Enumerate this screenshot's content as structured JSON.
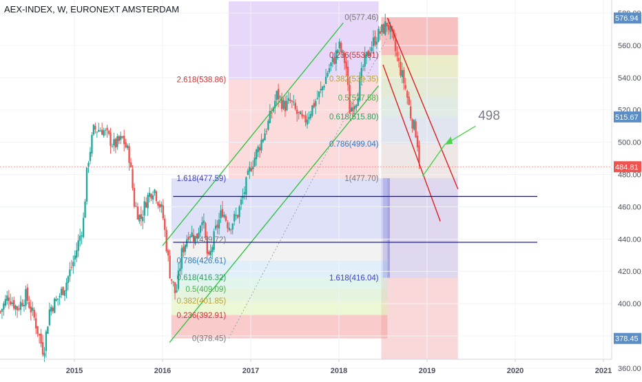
{
  "chart_data": {
    "type": "candlestick",
    "title": "AEX-INDEX, W, EURONEXT AMSTERDAM",
    "x_ticks": [
      "2015",
      "2016",
      "2017",
      "2018",
      "2019",
      "2020",
      "2021"
    ],
    "y_ticks": [
      "360.00",
      "380.00",
      "400.00",
      "420.00",
      "440.00",
      "460.00",
      "480.00",
      "500.00",
      "520.00",
      "540.00",
      "560.00",
      "580.00"
    ],
    "ylim": [
      352,
      583
    ],
    "xlim": [
      2014.16,
      2021.02
    ],
    "price_badges": [
      {
        "label": "576.94",
        "value": 576.94,
        "color": "#5b8ec4"
      },
      {
        "label": "515.67",
        "value": 515.67,
        "color": "#5b8ec4"
      },
      {
        "label": "484.81",
        "value": 484.81,
        "color": "#ef5350"
      },
      {
        "label": "378.45",
        "value": 378.45,
        "color": "#5b8ec4"
      }
    ],
    "candle_points": [
      [
        2014.16,
        395
      ],
      [
        2014.25,
        405
      ],
      [
        2014.35,
        397
      ],
      [
        2014.45,
        405
      ],
      [
        2014.55,
        390
      ],
      [
        2014.65,
        370
      ],
      [
        2014.72,
        397
      ],
      [
        2014.8,
        402
      ],
      [
        2014.9,
        412
      ],
      [
        2015.0,
        428
      ],
      [
        2015.1,
        450
      ],
      [
        2015.15,
        487
      ],
      [
        2015.22,
        508
      ],
      [
        2015.32,
        508
      ],
      [
        2015.45,
        498
      ],
      [
        2015.55,
        502
      ],
      [
        2015.62,
        492
      ],
      [
        2015.68,
        462
      ],
      [
        2015.75,
        452
      ],
      [
        2015.82,
        465
      ],
      [
        2015.9,
        472
      ],
      [
        2016.0,
        456
      ],
      [
        2016.08,
        420
      ],
      [
        2016.15,
        405
      ],
      [
        2016.22,
        432
      ],
      [
        2016.3,
        445
      ],
      [
        2016.38,
        440
      ],
      [
        2016.45,
        455
      ],
      [
        2016.52,
        425
      ],
      [
        2016.6,
        445
      ],
      [
        2016.68,
        458
      ],
      [
        2016.75,
        448
      ],
      [
        2016.85,
        455
      ],
      [
        2016.92,
        468
      ],
      [
        2017.0,
        485
      ],
      [
        2017.1,
        498
      ],
      [
        2017.2,
        512
      ],
      [
        2017.3,
        530
      ],
      [
        2017.38,
        522
      ],
      [
        2017.45,
        525
      ],
      [
        2017.52,
        518
      ],
      [
        2017.6,
        512
      ],
      [
        2017.7,
        522
      ],
      [
        2017.8,
        532
      ],
      [
        2017.88,
        545
      ],
      [
        2017.95,
        552
      ],
      [
        2018.0,
        560
      ],
      [
        2018.08,
        548
      ],
      [
        2018.12,
        520
      ],
      [
        2018.2,
        527
      ],
      [
        2018.28,
        548
      ],
      [
        2018.35,
        558
      ],
      [
        2018.42,
        565
      ],
      [
        2018.5,
        570
      ],
      [
        2018.55,
        574
      ],
      [
        2018.6,
        565
      ],
      [
        2018.68,
        548
      ],
      [
        2018.75,
        535
      ],
      [
        2018.82,
        515
      ],
      [
        2018.88,
        505
      ],
      [
        2018.92,
        485
      ]
    ],
    "fib_upper": {
      "anchor_low": "0(378.45)",
      "anchor_high": "0(577.46)",
      "levels": [
        {
          "label": "0.236(553.91)",
          "value": 553.91,
          "color": "#cc3333"
        },
        {
          "label": "0.382(539.35)",
          "value": 539.35,
          "color": "#b7a22f"
        },
        {
          "label": "0.5(527.58)",
          "value": 527.58,
          "color": "#4caf50"
        },
        {
          "label": "0.618(515.80)",
          "value": 515.8,
          "color": "#2e9c60"
        },
        {
          "label": "0.786(499.04)",
          "value": 499.04,
          "color": "#2b78c4"
        },
        {
          "label": "1(477.70)",
          "value": 477.7,
          "color": "#777777"
        },
        {
          "label": "1.618(416.04)",
          "value": 416.04,
          "color": "#3b3bc4"
        }
      ]
    },
    "fib_lower": {
      "levels": [
        {
          "label": "2.618(538.86)",
          "value": 538.86,
          "color": "#cc3333"
        },
        {
          "label": "1.618(477.59)",
          "value": 477.59,
          "color": "#3b3bc4"
        },
        {
          "label": "1(439.72)",
          "value": 439.72,
          "color": "#777777"
        },
        {
          "label": "0.786(426.61)",
          "value": 426.61,
          "color": "#2b78c4"
        },
        {
          "label": "0.618(416.32)",
          "value": 416.32,
          "color": "#2e9c60"
        },
        {
          "label": "0.5(409.09)",
          "value": 409.09,
          "color": "#4caf50"
        },
        {
          "label": "0.382(401.85)",
          "value": 401.85,
          "color": "#b7a22f"
        },
        {
          "label": "0.236(392.91)",
          "value": 392.91,
          "color": "#cc3333"
        },
        {
          "label": "0(378.45)",
          "value": 378.45,
          "color": "#777777"
        }
      ]
    },
    "annotation": "498",
    "horizontal_lines": [
      466.4,
      438.0
    ],
    "colors": {
      "up": "#26a69a",
      "down": "#ef5350",
      "channel_up": "#26c23a",
      "channel_down": "#d92020",
      "hline": "#1a1aa6"
    }
  }
}
